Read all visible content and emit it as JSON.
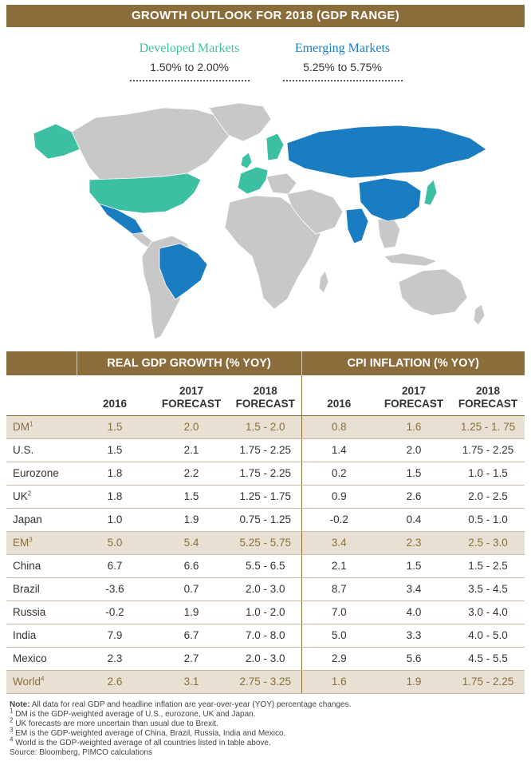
{
  "banner_title": "GROWTH OUTLOOK FOR 2018 (GDP RANGE)",
  "legend": {
    "developed": {
      "name": "Developed Markets",
      "range": "1.50% to 2.00%",
      "color": "#3dbfa3"
    },
    "emerging": {
      "name": "Emerging Markets",
      "range": "5.25% to 5.75%",
      "color": "#1a7cc1"
    }
  },
  "map_colors": {
    "other": "#c8c8c8",
    "developed": "#3dbfa3",
    "emerging": "#1a7cc1"
  },
  "table": {
    "group_headers": {
      "gdp": "REAL GDP GROWTH (% YOY)",
      "cpi": "CPI INFLATION (% YOY)"
    },
    "col_headers": {
      "c2016": "2016",
      "c2017_a": "2017",
      "c2017_b": "FORECAST",
      "c2018_a": "2018",
      "c2018_b": "FORECAST"
    },
    "rows": [
      {
        "name": "DM",
        "sup": "1",
        "agg": true,
        "g16": "1.5",
        "g17": "2.0",
        "g18": "1.5 - 2.0",
        "c16": "0.8",
        "c17": "1.6",
        "c18": "1.25 - 1. 75"
      },
      {
        "name": "U.S.",
        "sup": "",
        "agg": false,
        "g16": "1.5",
        "g17": "2.1",
        "g18": "1.75 - 2.25",
        "c16": "1.4",
        "c17": "2.0",
        "c18": "1.75 - 2.25"
      },
      {
        "name": "Eurozone",
        "sup": "",
        "agg": false,
        "g16": "1.8",
        "g17": "2.2",
        "g18": "1.75 - 2.25",
        "c16": "0.2",
        "c17": "1.5",
        "c18": "1.0 - 1.5"
      },
      {
        "name": "UK",
        "sup": "2",
        "agg": false,
        "g16": "1.8",
        "g17": "1.5",
        "g18": "1.25 - 1.75",
        "c16": "0.9",
        "c17": "2.6",
        "c18": "2.0 - 2.5"
      },
      {
        "name": "Japan",
        "sup": "",
        "agg": false,
        "g16": "1.0",
        "g17": "1.9",
        "g18": "0.75 - 1.25",
        "c16": "-0.2",
        "c17": "0.4",
        "c18": "0.5 - 1.0"
      },
      {
        "name": "EM",
        "sup": "3",
        "agg": true,
        "g16": "5.0",
        "g17": "5.4",
        "g18": "5.25 - 5.75",
        "c16": "3.4",
        "c17": "2.3",
        "c18": "2.5 - 3.0"
      },
      {
        "name": "China",
        "sup": "",
        "agg": false,
        "g16": "6.7",
        "g17": "6.6",
        "g18": "5.5 - 6.5",
        "c16": "2.1",
        "c17": "1.5",
        "c18": "1.5 - 2.5"
      },
      {
        "name": "Brazil",
        "sup": "",
        "agg": false,
        "g16": "-3.6",
        "g17": "0.7",
        "g18": "2.0 - 3.0",
        "c16": "8.7",
        "c17": "3.4",
        "c18": "3.5 - 4.5"
      },
      {
        "name": "Russia",
        "sup": "",
        "agg": false,
        "g16": "-0.2",
        "g17": "1.9",
        "g18": "1.0 - 2.0",
        "c16": "7.0",
        "c17": "4.0",
        "c18": "3.0 - 4.0"
      },
      {
        "name": "India",
        "sup": "",
        "agg": false,
        "g16": "7.9",
        "g17": "6.7",
        "g18": "7.0 - 8.0",
        "c16": "5.0",
        "c17": "3.3",
        "c18": "4.0 - 5.0"
      },
      {
        "name": "Mexico",
        "sup": "",
        "agg": false,
        "g16": "2.3",
        "g17": "2.7",
        "g18": "2.0 - 3.0",
        "c16": "2.9",
        "c17": "5.6",
        "c18": "4.5 - 5.5"
      },
      {
        "name": "World",
        "sup": "4",
        "agg": true,
        "g16": "2.6",
        "g17": "3.1",
        "g18": "2.75 - 3.25",
        "c16": "1.6",
        "c17": "1.9",
        "c18": "1.75 - 2.25"
      }
    ]
  },
  "notes": {
    "lead_bold": "Note:",
    "lead_text": " All data for real GDP and headline inflation are year-over-year (YOY) percentage changes.",
    "items": [
      {
        "sup": "1",
        "text": " DM is the GDP-weighted average of U.S., eurozone, UK and Japan."
      },
      {
        "sup": "2",
        "text": " UK forecasts are more uncertain than usual due to Brexit."
      },
      {
        "sup": "3",
        "text": " EM is the GDP-weighted average of China, Brazil, Russia, India and Mexico."
      },
      {
        "sup": "4",
        "text": " World is the GDP-weighted average of all countries listed in table above."
      }
    ],
    "source": "Source: Bloomberg, PIMCO calculations"
  }
}
